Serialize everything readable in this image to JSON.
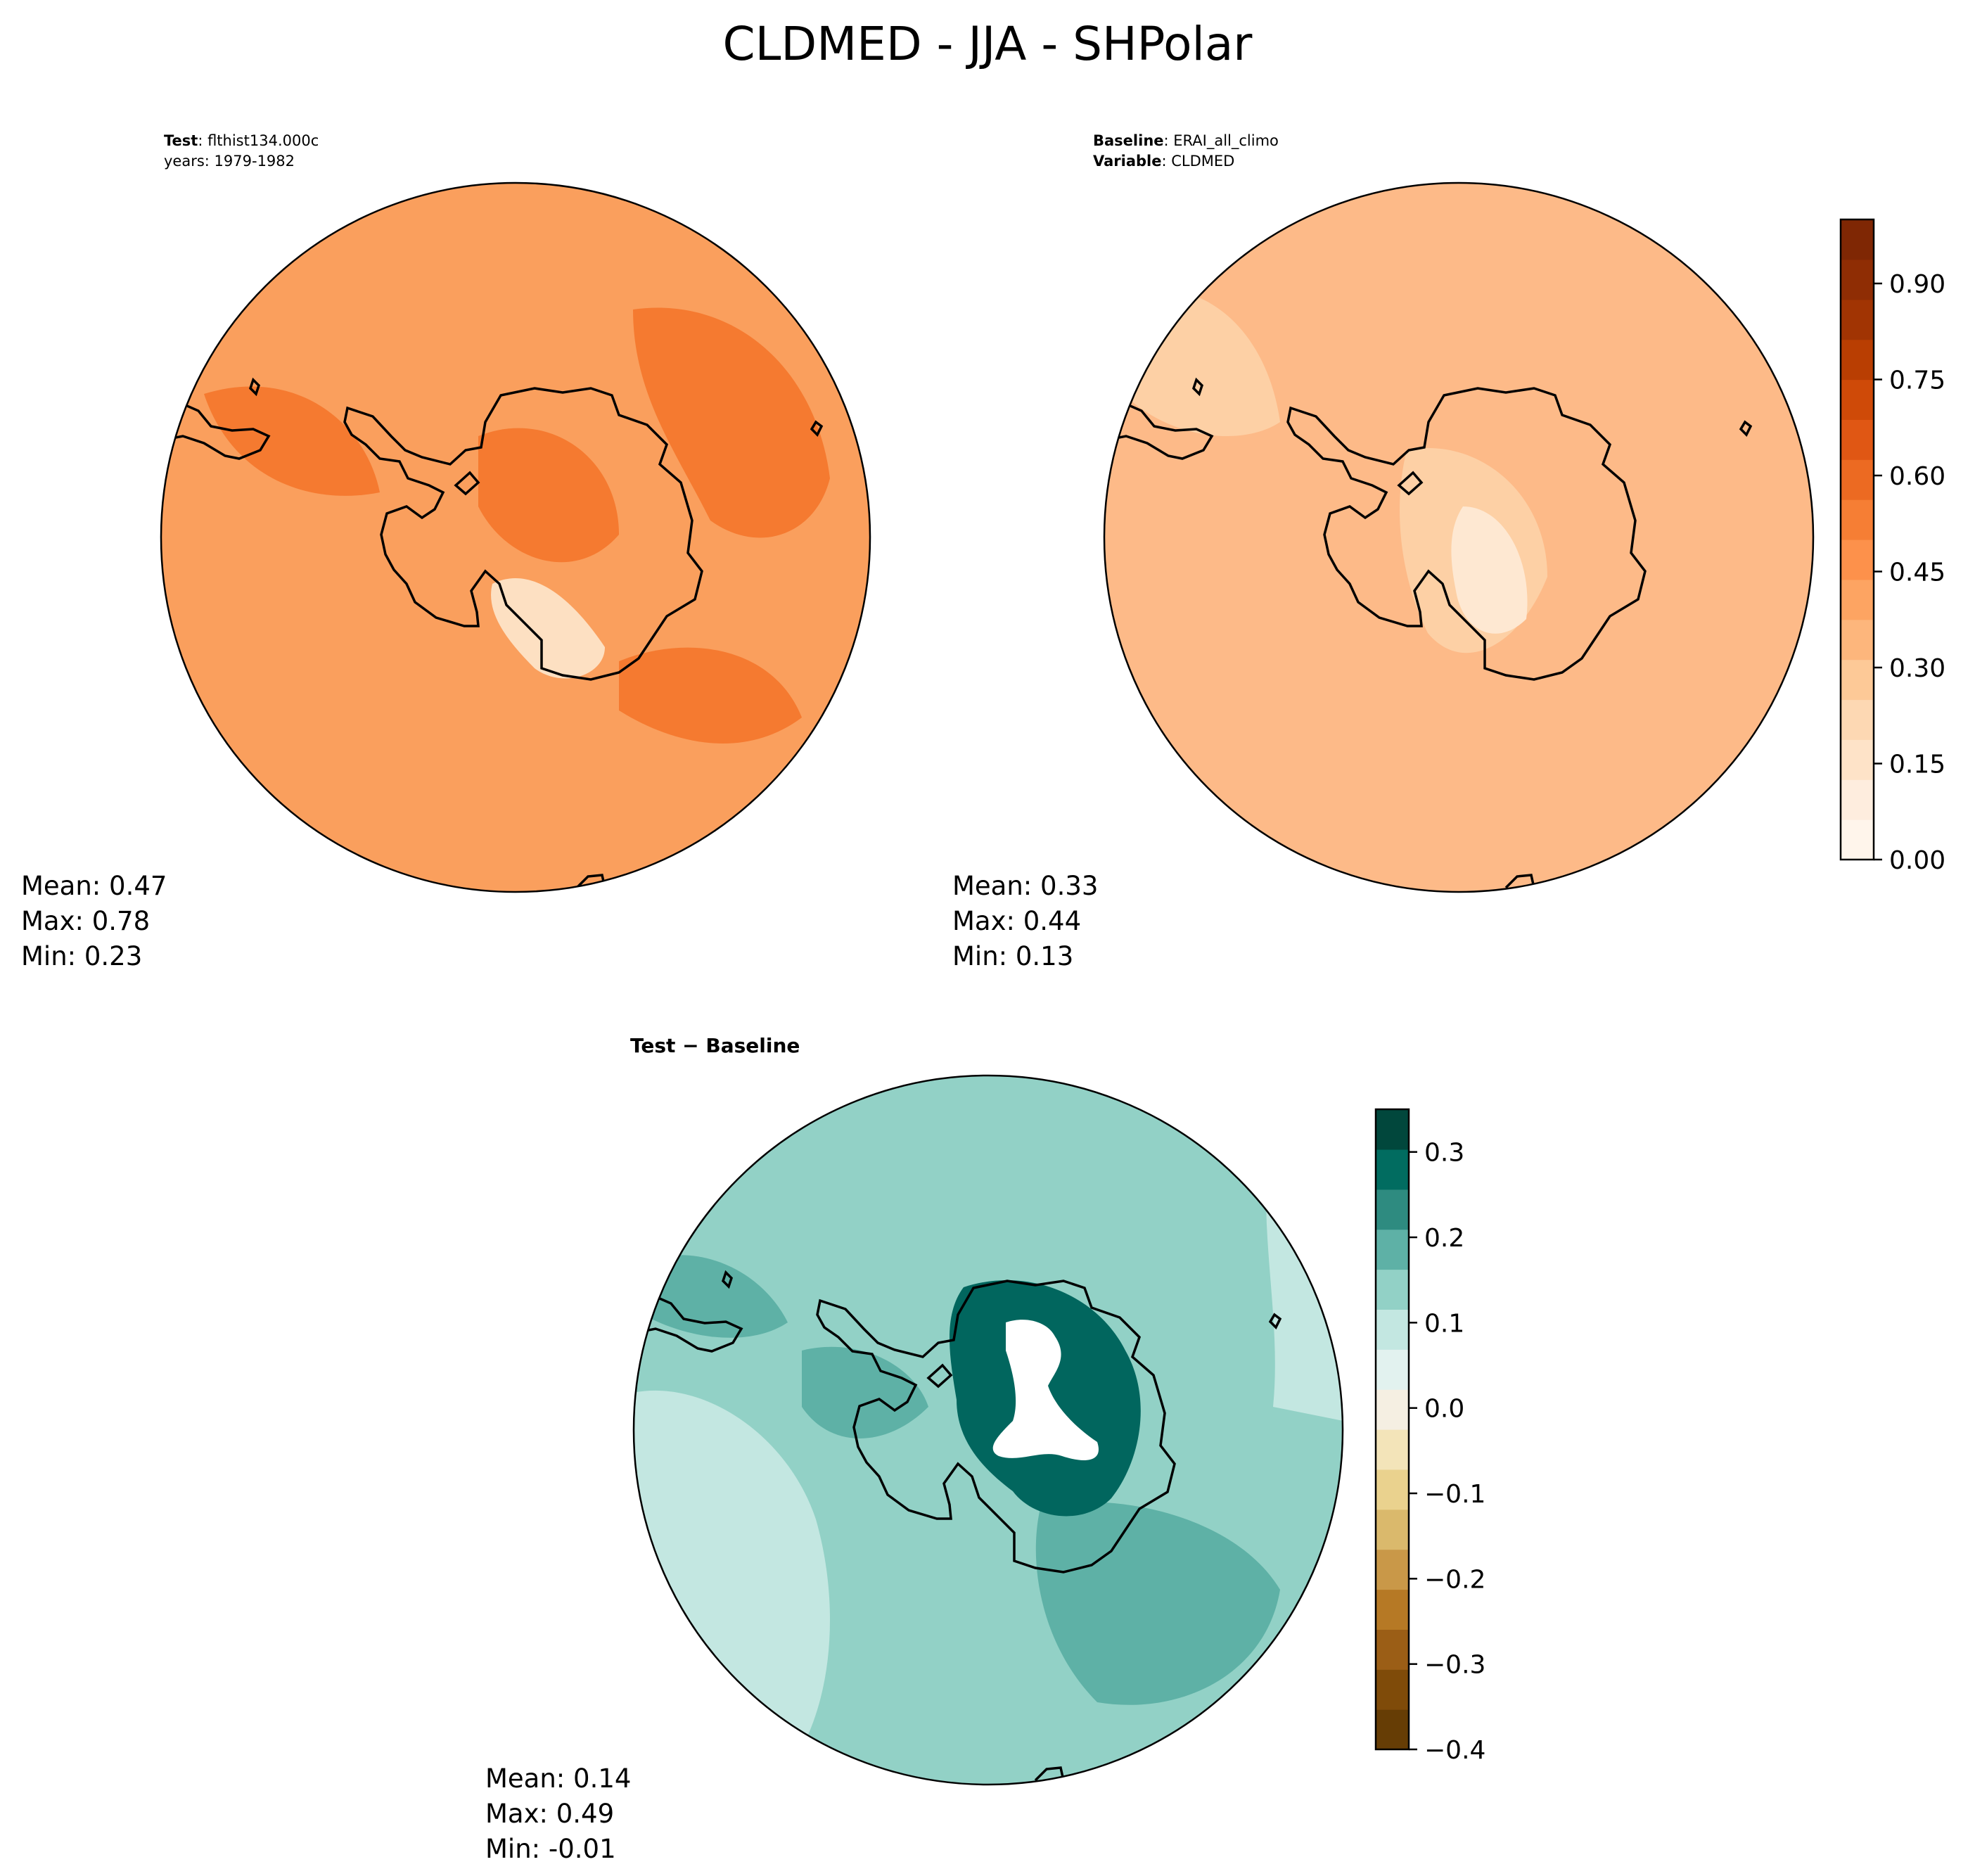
{
  "figure": {
    "title": "CLDMED - JJA - SHPolar"
  },
  "panels": {
    "test": {
      "label_bold": "Test",
      "label_value": ": flthist134.000c",
      "subline": "years: 1979-1982",
      "stats": {
        "mean": "Mean:  0.47",
        "max": "Max:  0.78",
        "min": "Min:  0.23"
      },
      "ocean_color": "#fa9f5d",
      "land_color": "#f57a30",
      "highlight_color": "#fde0c2"
    },
    "baseline": {
      "label_bold": "Baseline",
      "label_value": ": ERAI_all_climo",
      "var_bold": "Variable",
      "var_value": ": CLDMED",
      "stats": {
        "mean": "Mean:  0.33",
        "max": "Max:  0.44",
        "min": "Min:  0.13"
      },
      "ocean_color": "#fdba88",
      "land_color": "#fdd0a5",
      "highlight_color": "#fee8d2"
    },
    "diff": {
      "title": "Test − Baseline",
      "stats": {
        "mean": "Mean:  0.14",
        "max": "Max:  0.49",
        "min": "Min: -0.01"
      },
      "ocean_color": "#92d1c6",
      "land_color": "#5eb1a6",
      "light_color": "#c3e7e1",
      "strong_color": "#01665e",
      "hole_color": "#ffffff"
    }
  },
  "colorbars": {
    "main": {
      "ticks": [
        "0.00",
        "0.15",
        "0.30",
        "0.45",
        "0.60",
        "0.75",
        "0.90"
      ],
      "tick_values": [
        0.0,
        0.15,
        0.3,
        0.45,
        0.6,
        0.75,
        0.9
      ],
      "range": [
        0.0,
        1.0
      ],
      "colors": [
        "#fff5eb",
        "#feedde",
        "#fee3c8",
        "#fdd8b3",
        "#fdc997",
        "#fdb67c",
        "#fda462",
        "#fd914b",
        "#f67e34",
        "#ec6a22",
        "#e05714",
        "#cf4a08",
        "#b93e02",
        "#a13403",
        "#8f2d04",
        "#7f2704"
      ]
    },
    "diff": {
      "ticks": [
        "0.3",
        "0.2",
        "0.1",
        "0.0",
        "−0.1",
        "−0.2",
        "−0.3",
        "−0.4"
      ],
      "tick_values": [
        0.3,
        0.2,
        0.1,
        0.0,
        -0.1,
        -0.2,
        -0.3,
        -0.4
      ],
      "range": [
        -0.4,
        0.35
      ],
      "colors": [
        "#663d05",
        "#7f4b09",
        "#9b5e16",
        "#b67925",
        "#c99848",
        "#dab96c",
        "#ead28e",
        "#f3e4b9",
        "#f5efe2",
        "#e2f2ef",
        "#c3e7e1",
        "#92d1c6",
        "#5eb1a6",
        "#2e8b80",
        "#016c60",
        "#01473c"
      ]
    }
  }
}
